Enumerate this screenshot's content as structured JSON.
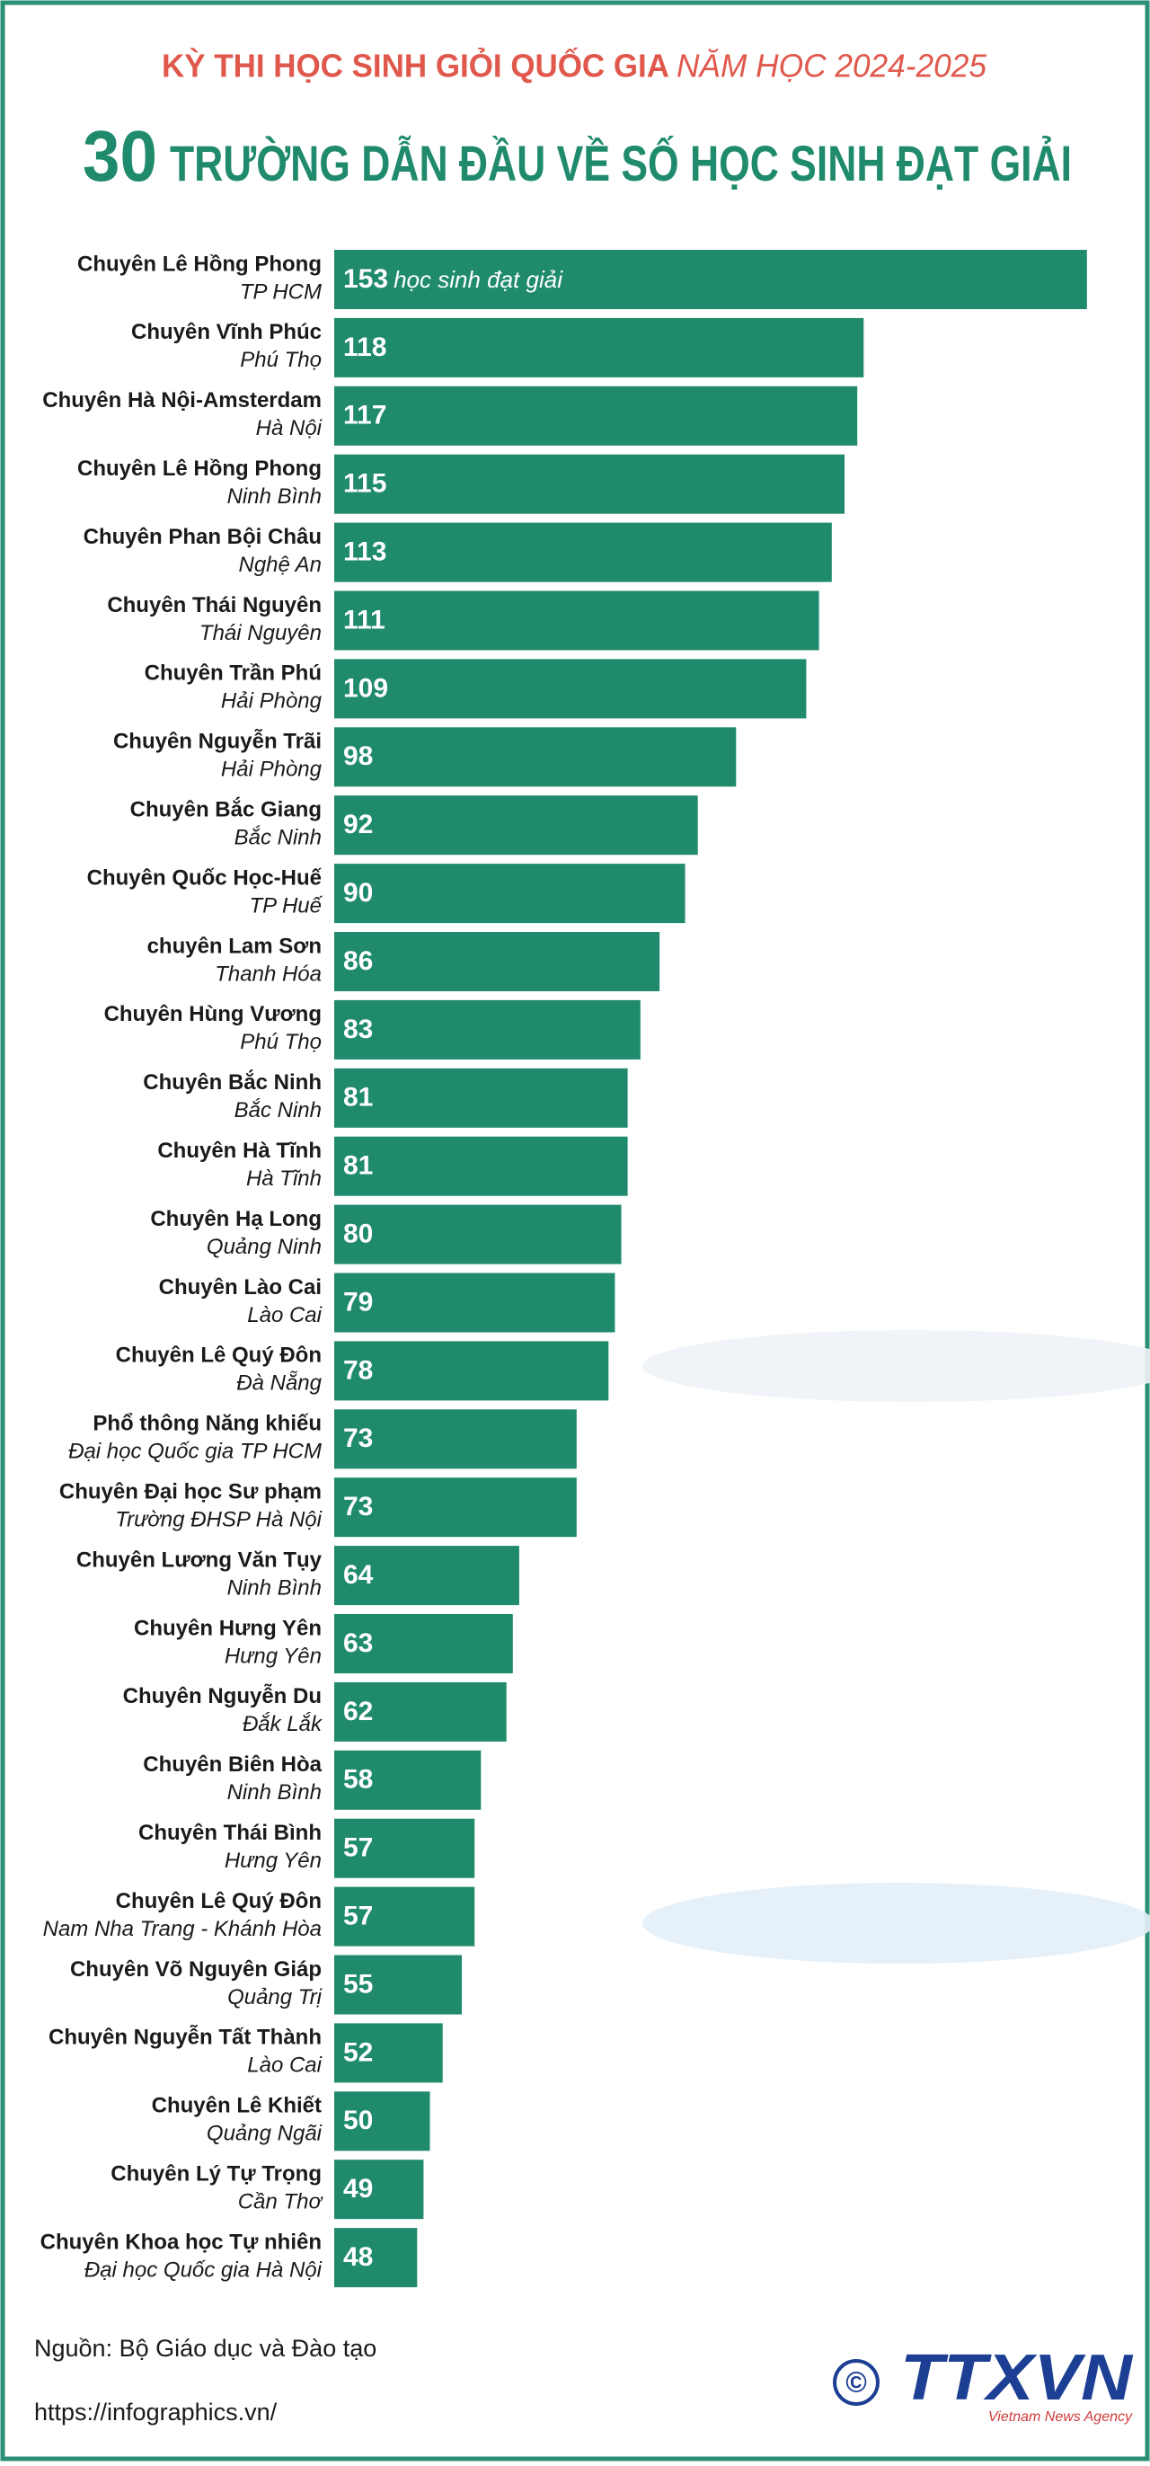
{
  "chart_data": {
    "type": "bar",
    "title_prefix": "KỲ THI HỌC SINH GIỎI QUỐC GIA",
    "title_suffix": "NĂM HỌC 2024-2025",
    "subtitle_number": "30",
    "subtitle": "TRƯỜNG DẪN ĐẦU VỀ SỐ HỌC SINH ĐẠT GIẢI",
    "value_unit": "học sinh đạt giải",
    "categories": [
      "Chuyên Lê Hồng Phong",
      "Chuyên Vĩnh Phúc",
      "Chuyên Hà Nội-Amsterdam",
      "Chuyên Lê Hồng Phong",
      "Chuyên Phan Bội Châu",
      "Chuyên Thái Nguyên",
      "Chuyên Trần Phú",
      "Chuyên Nguyễn Trãi",
      "Chuyên Bắc Giang",
      "Chuyên Quốc Học-Huế",
      "chuyên Lam Sơn",
      "Chuyên Hùng Vương",
      "Chuyên Bắc Ninh",
      "Chuyên Hà Tĩnh",
      "Chuyên Hạ Long",
      "Chuyên Lào Cai",
      "Chuyên Lê Quý Đôn",
      "Phổ thông Năng khiếu",
      "Chuyên Đại học Sư phạm",
      "Chuyên Lương Văn Tụy",
      "Chuyên Hưng Yên",
      "Chuyên Nguyễn Du",
      "Chuyên Biên Hòa",
      "Chuyên Thái Bình",
      "Chuyên Lê Quý Đôn",
      "Chuyên Võ Nguyên Giáp",
      "Chuyên Nguyễn Tất Thành",
      "Chuyên Lê Khiết",
      "Chuyên Lý Tự Trọng",
      "Chuyên Khoa học Tự nhiên"
    ],
    "locations": [
      "TP HCM",
      "Phú Thọ",
      "Hà Nội",
      "Ninh Bình",
      "Nghệ An",
      "Thái Nguyên",
      "Hải Phòng",
      "Hải Phòng",
      "Bắc Ninh",
      "TP Huế",
      "Thanh Hóa",
      "Phú Thọ",
      "Bắc Ninh",
      "Hà Tĩnh",
      "Quảng Ninh",
      "Lào Cai",
      "Đà Nẵng",
      "Đại học Quốc gia TP HCM",
      "Trường ĐHSP Hà Nội",
      "Ninh Bình",
      "Hưng Yên",
      "Đắk Lắk",
      "Ninh Bình",
      "Hưng Yên",
      "Nam Nha Trang - Khánh Hòa",
      "Quảng Trị",
      "Lào Cai",
      "Quảng Ngãi",
      "Cần Thơ",
      "Đại học Quốc gia Hà Nội"
    ],
    "values": [
      153,
      118,
      117,
      115,
      113,
      111,
      109,
      98,
      92,
      90,
      86,
      83,
      81,
      81,
      80,
      79,
      78,
      73,
      73,
      64,
      63,
      62,
      58,
      57,
      57,
      55,
      52,
      50,
      49,
      48
    ],
    "color": "#1f8a6c",
    "xlim": [
      35,
      155
    ]
  },
  "source": "Nguồn: Bộ Giáo dục và Đào tạo",
  "url": "https://infographics.vn/",
  "logo": {
    "mark": "©",
    "name": "TTXVN",
    "tagline": "Vietnam News Agency"
  }
}
